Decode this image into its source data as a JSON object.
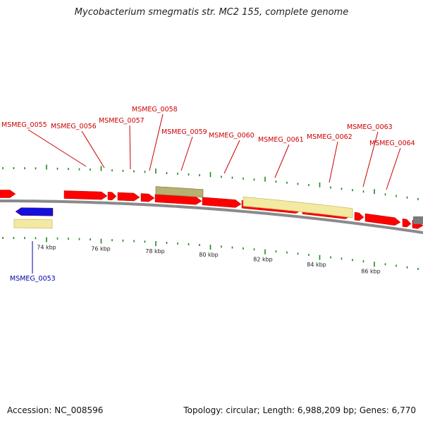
{
  "title": "Mycobacterium smegmatis str. MC2 155, complete genome",
  "footer": {
    "accession": "Accession: NC_008596",
    "summary": "Topology: circular; Length: 6,988,209 bp; Genes: 6,770"
  },
  "colors": {
    "forward_gene": "#ff0000",
    "reverse_gene": "#1010e0",
    "rna_feature": "#f4e9a0",
    "rna_feature_dark": "#b8b070",
    "other_feature": "#7a7a7a",
    "backbone": "#8a8a8a",
    "tick": "#1a8a1a",
    "label_top": "#cc0000",
    "label_bottom": "#0000aa"
  },
  "scale_labels": [
    "74 kbp",
    "76 kbp",
    "78 kbp",
    "80 kbp",
    "82 kbp",
    "84 kbp",
    "86 kbp"
  ],
  "top_labels": [
    "MSMEG_0055",
    "MSMEG_0056",
    "MSMEG_0057",
    "MSMEG_0058",
    "MSMEG_0059",
    "MSMEG_0060",
    "MSMEG_0061",
    "MSMEG_0062",
    "MSMEG_0063",
    "MSMEG_0064"
  ],
  "bottom_labels": [
    "MSMEG_0053"
  ]
}
